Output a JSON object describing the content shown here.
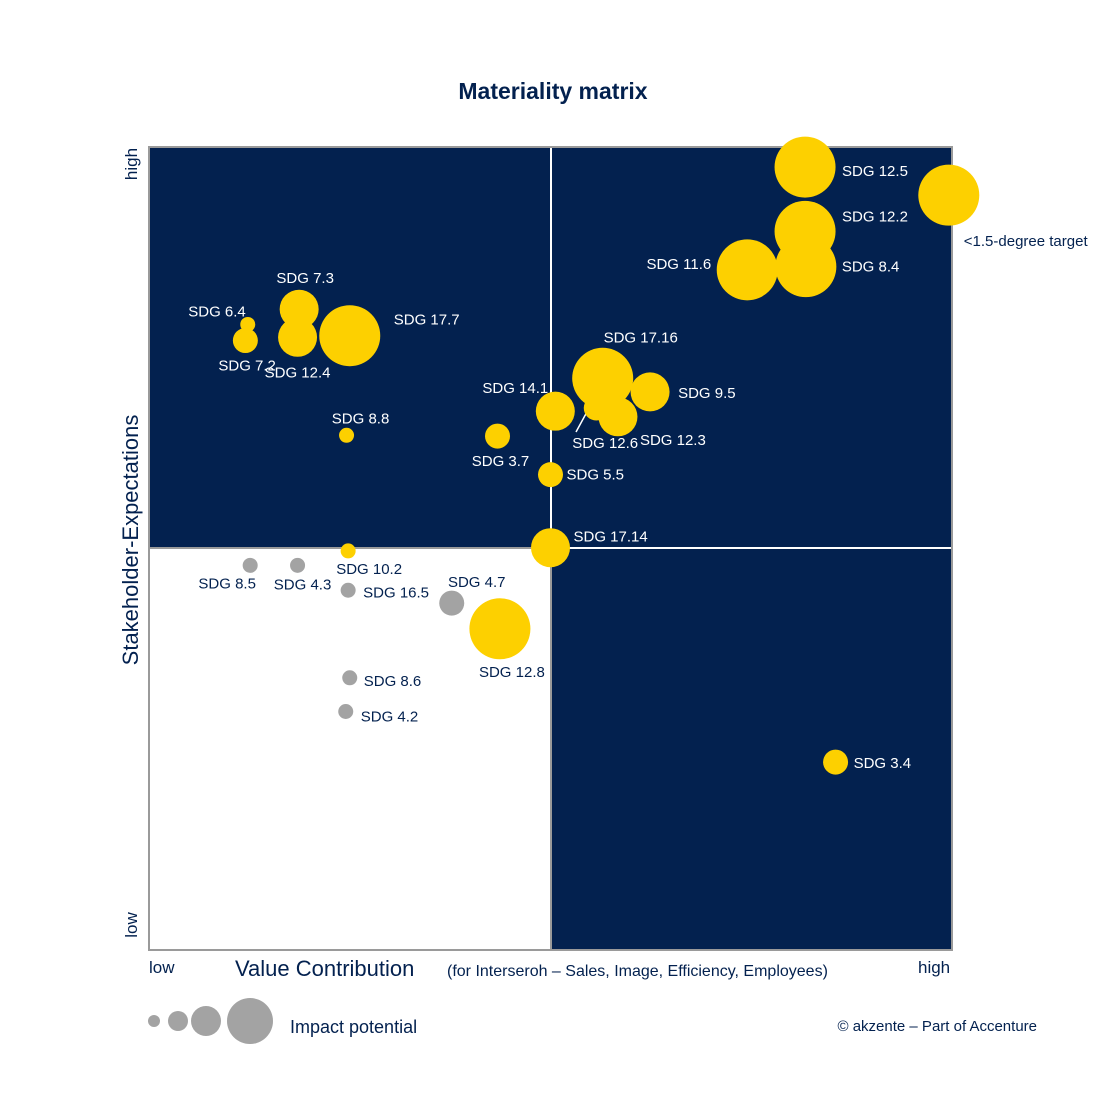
{
  "chart_data": {
    "type": "scatter",
    "title": "Materiality matrix",
    "xlabel": "Value Contribution",
    "xlabel_note": "(for Interseroh – Sales, Image, Efficiency, Employees)",
    "ylabel": "Stakeholder-Expectations",
    "x_low": "low",
    "x_high": "high",
    "y_low": "low",
    "y_high": "high",
    "xlim": [
      0,
      10
    ],
    "ylim": [
      0,
      10
    ],
    "legend_label": "Impact potential",
    "legend_sizes": [
      1,
      2,
      3,
      4
    ],
    "credit": "© akzente – Part of Accenture",
    "colors": {
      "navy": "#03214f",
      "yellow": "#fdd000",
      "grey": "#a3a3a3",
      "border": "#9a9a9a"
    },
    "points": [
      {
        "label": "SDG 12.5",
        "x": 8.17,
        "y": 9.75,
        "impact": 4,
        "color": "yellow"
      },
      {
        "label": "<1.5-degree target",
        "x": 9.96,
        "y": 9.4,
        "impact": 4,
        "color": "yellow"
      },
      {
        "label": "SDG 12.2",
        "x": 8.17,
        "y": 8.95,
        "impact": 4,
        "color": "yellow"
      },
      {
        "label": "SDG 8.4",
        "x": 8.18,
        "y": 8.51,
        "impact": 4,
        "color": "yellow"
      },
      {
        "label": "SDG 11.6",
        "x": 7.45,
        "y": 8.47,
        "impact": 4,
        "color": "yellow"
      },
      {
        "label": "SDG 7.3",
        "x": 1.87,
        "y": 7.98,
        "impact": 3,
        "color": "yellow"
      },
      {
        "label": "SDG 6.4",
        "x": 1.23,
        "y": 7.79,
        "impact": 1,
        "color": "yellow"
      },
      {
        "label": "SDG 7.2",
        "x": 1.2,
        "y": 7.59,
        "impact": 2,
        "color": "yellow"
      },
      {
        "label": "SDG 12.4",
        "x": 1.85,
        "y": 7.63,
        "impact": 3,
        "color": "yellow"
      },
      {
        "label": "SDG 17.7",
        "x": 2.5,
        "y": 7.65,
        "impact": 4,
        "color": "yellow"
      },
      {
        "label": "SDG 17.16",
        "x": 5.65,
        "y": 7.12,
        "impact": 4,
        "color": "yellow"
      },
      {
        "label": "SDG 9.5",
        "x": 6.24,
        "y": 6.95,
        "impact": 3,
        "color": "yellow"
      },
      {
        "label": "SDG 14.1",
        "x": 5.06,
        "y": 6.71,
        "impact": 3,
        "color": "yellow"
      },
      {
        "label": "SDG 12.3",
        "x": 5.84,
        "y": 6.64,
        "impact": 3,
        "color": "yellow"
      },
      {
        "label": "SDG 12.6",
        "x": 5.57,
        "y": 6.75,
        "impact": 2,
        "color": "yellow"
      },
      {
        "label": "SDG 3.7",
        "x": 4.34,
        "y": 6.4,
        "impact": 2,
        "color": "yellow"
      },
      {
        "label": "SDG 8.8",
        "x": 2.46,
        "y": 6.41,
        "impact": 1,
        "color": "yellow"
      },
      {
        "label": "SDG 5.5",
        "x": 5.0,
        "y": 5.92,
        "impact": 2,
        "color": "yellow"
      },
      {
        "label": "SDG 17.14",
        "x": 5.0,
        "y": 5.01,
        "impact": 3,
        "color": "yellow"
      },
      {
        "label": "SDG 10.2",
        "x": 2.48,
        "y": 4.97,
        "impact": 1,
        "color": "yellow"
      },
      {
        "label": "SDG 8.5",
        "x": 1.26,
        "y": 4.79,
        "impact": 1,
        "color": "grey"
      },
      {
        "label": "SDG 4.3",
        "x": 1.85,
        "y": 4.79,
        "impact": 1,
        "color": "grey"
      },
      {
        "label": "SDG 16.5",
        "x": 2.48,
        "y": 4.48,
        "impact": 1,
        "color": "grey"
      },
      {
        "label": "SDG 4.7",
        "x": 3.77,
        "y": 4.32,
        "impact": 2,
        "color": "grey"
      },
      {
        "label": "SDG 12.8",
        "x": 4.37,
        "y": 4.0,
        "impact": 4,
        "color": "yellow"
      },
      {
        "label": "SDG 8.6",
        "x": 2.5,
        "y": 3.39,
        "impact": 1,
        "color": "grey"
      },
      {
        "label": "SDG 4.2",
        "x": 2.45,
        "y": 2.97,
        "impact": 1,
        "color": "grey"
      },
      {
        "label": "SDG 3.4",
        "x": 8.55,
        "y": 2.34,
        "impact": 2,
        "color": "yellow"
      }
    ]
  }
}
